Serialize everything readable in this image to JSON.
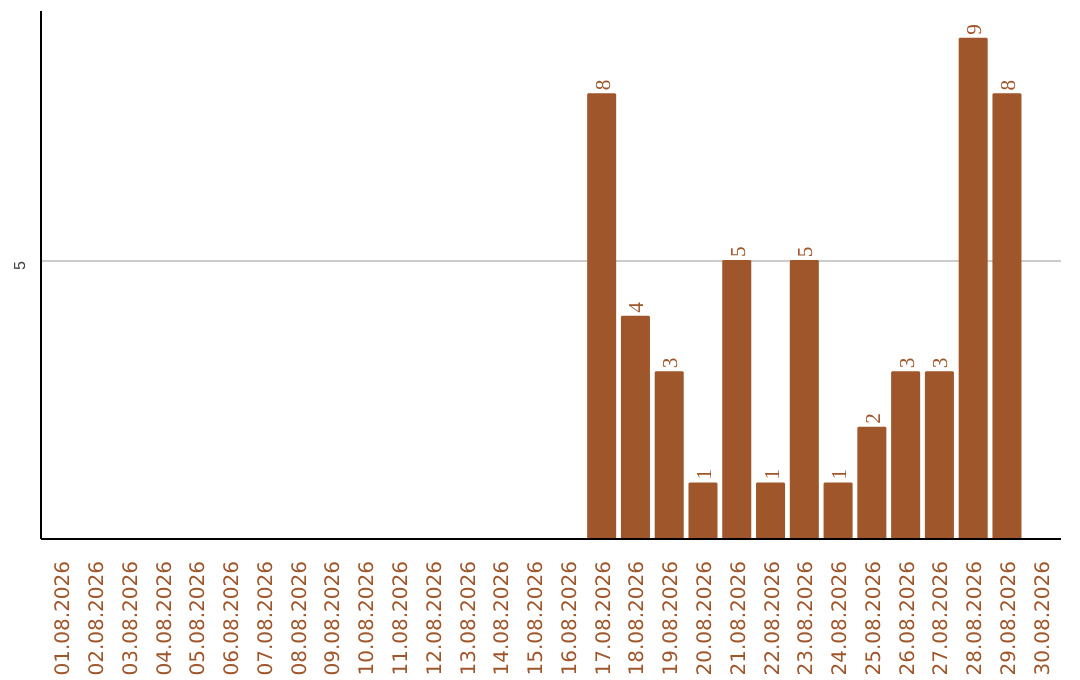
{
  "chart_data": {
    "type": "bar",
    "categories": [
      "01.08.2026",
      "02.08.2026",
      "03.08.2026",
      "04.08.2026",
      "05.08.2026",
      "06.08.2026",
      "07.08.2026",
      "08.08.2026",
      "09.08.2026",
      "10.08.2026",
      "11.08.2026",
      "12.08.2026",
      "13.08.2026",
      "14.08.2026",
      "15.08.2026",
      "16.08.2026",
      "17.08.2026",
      "18.08.2026",
      "19.08.2026",
      "20.08.2026",
      "21.08.2026",
      "22.08.2026",
      "23.08.2026",
      "24.08.2026",
      "25.08.2026",
      "26.08.2026",
      "27.08.2026",
      "28.08.2026",
      "29.08.2026",
      "30.08.2026"
    ],
    "values": [
      null,
      null,
      null,
      null,
      null,
      null,
      null,
      null,
      null,
      null,
      null,
      null,
      null,
      null,
      null,
      null,
      8,
      4,
      3,
      1,
      5,
      1,
      5,
      1,
      2,
      3,
      3,
      9,
      8,
      null
    ],
    "color": "#a0562b",
    "ylim": [
      0,
      9.5
    ],
    "yticks": [
      5
    ],
    "grid": "y",
    "data_labels": true
  }
}
